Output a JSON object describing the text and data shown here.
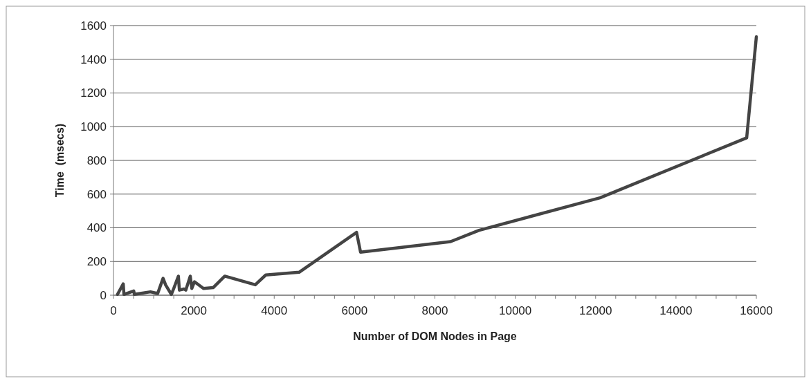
{
  "chart_data": {
    "type": "line",
    "xlabel": "Number of DOM Nodes in Page",
    "ylabel": "Time  (msecs)",
    "series": [
      {
        "color": "#444444",
        "x": [
          100,
          243,
          260,
          504,
          520,
          920,
          1100,
          1234,
          1300,
          1440,
          1500,
          1615,
          1640,
          1755,
          1800,
          1911,
          1950,
          2015,
          2240,
          2480,
          2770,
          3530,
          3790,
          4620,
          6050,
          6150,
          8390,
          9100,
          12110,
          15760,
          16000
        ],
        "values": [
          5,
          67,
          5,
          25,
          5,
          20,
          10,
          100,
          60,
          5,
          40,
          113,
          30,
          37,
          30,
          113,
          40,
          80,
          40,
          45,
          113,
          62,
          120,
          136,
          373,
          255,
          318,
          385,
          578,
          934,
          1533
        ]
      }
    ],
    "xlim": [
      0,
      16000
    ],
    "xticks": [
      0,
      2000,
      4000,
      6000,
      8000,
      10000,
      12000,
      14000,
      16000
    ],
    "ylim": [
      0,
      1600
    ],
    "yticks": [
      0,
      200,
      400,
      600,
      800,
      1000,
      1200,
      1400,
      1600
    ],
    "grid": "y",
    "line_style": "solid",
    "marker": "none"
  }
}
